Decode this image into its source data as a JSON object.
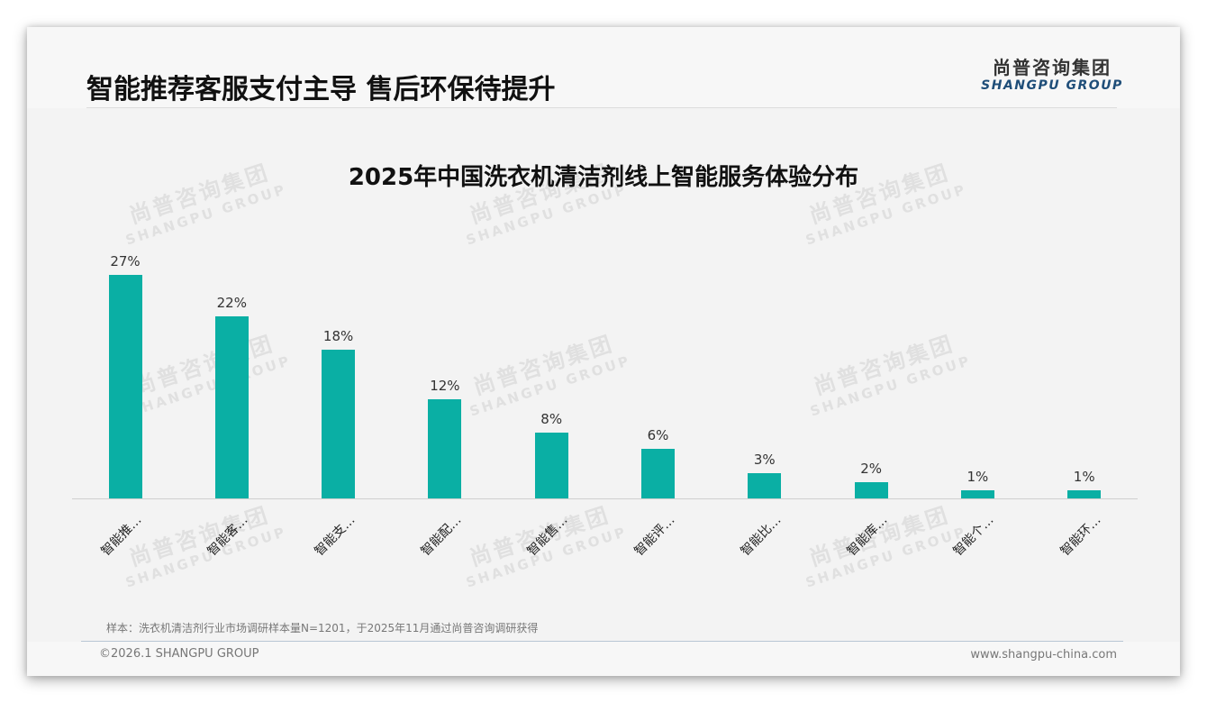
{
  "header": {
    "title": "智能推荐客服支付主导 售后环保待提升",
    "logo_cn": "尚普咨询集团",
    "logo_en": "SHANGPU GROUP"
  },
  "watermark": {
    "cn": "尚普咨询集团",
    "en": "SHANGPU GROUP"
  },
  "chart_data": {
    "type": "bar",
    "title": "2025年中国洗衣机清洁剂线上智能服务体验分布",
    "categories": [
      "智能推…",
      "智能客…",
      "智能支…",
      "智能配…",
      "智能售…",
      "智能评…",
      "智能比…",
      "智能库…",
      "智能个…",
      "智能环…"
    ],
    "values": [
      27,
      22,
      18,
      12,
      8,
      6,
      3,
      2,
      1,
      1
    ],
    "value_labels": [
      "27%",
      "22%",
      "18%",
      "12%",
      "8%",
      "6%",
      "3%",
      "2%",
      "1%",
      "1%"
    ],
    "unit": "%",
    "xlabel": "",
    "ylabel": "",
    "ylim": [
      0,
      30
    ],
    "grid": false,
    "legend": "none",
    "bar_color": "#0aafa4"
  },
  "footer": {
    "footnote": "样本：洗衣机清洁剂行业市场调研样本量N=1201，于2025年11月通过尚普咨询调研获得",
    "copyright": "©2026.1 SHANGPU GROUP",
    "website": "www.shangpu-china.com"
  }
}
